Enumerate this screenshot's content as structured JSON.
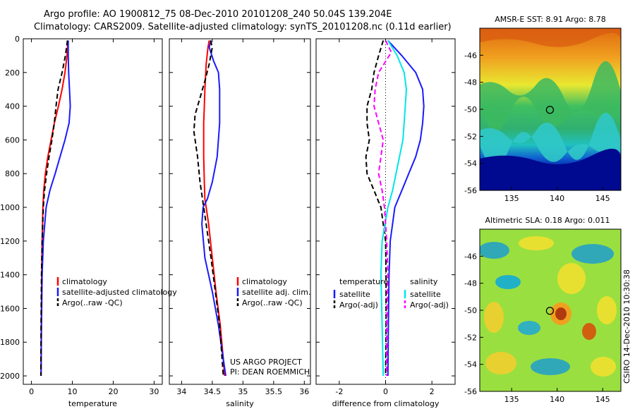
{
  "header": {
    "line1": "Argo profile: AO 1900812_75 08-Dec-2010 20101208_240 50.04S 139.204E",
    "line2": "Climatology: CARS2009. Satellite-adjusted climatology: synTS_20101208.nc (0.11d earlier)"
  },
  "footer": {
    "project": "US ARGO PROJECT",
    "pi": "PI: DEAN ROEMMICH",
    "stamp": "CSIRO 14-Dec-2010 10:30:38"
  },
  "colors": {
    "climatology": "#ff0000",
    "satellite": "#1a1aff",
    "argo": "#000000",
    "satellite_salinity": "#00e6e6",
    "argo_salinity_diff": "#ff00ff"
  },
  "chart_data": [
    {
      "type": "line",
      "xlabel": "temperature",
      "ylabel": "",
      "xlim": [
        -2,
        32
      ],
      "ylim": [
        2050,
        0
      ],
      "xticks": [
        0,
        10,
        20,
        30
      ],
      "yticks": [
        0,
        200,
        400,
        600,
        800,
        1000,
        1200,
        1400,
        1600,
        1800,
        2000
      ],
      "legend": [
        "climatology",
        "satellite-adjusted climatology",
        "Argo(..raw -QC)"
      ],
      "series": [
        {
          "name": "climatology",
          "style": "solid",
          "color": "#ff0000",
          "x": [
            8.9,
            8.7,
            8.2,
            7.5,
            6.6,
            5.6,
            4.8,
            4.0,
            3.4,
            3.0,
            2.8,
            2.6,
            2.5,
            2.4,
            2.35
          ],
          "y": [
            10,
            100,
            200,
            300,
            400,
            500,
            600,
            700,
            800,
            900,
            1000,
            1200,
            1400,
            1700,
            2000
          ]
        },
        {
          "name": "satellite-adjusted climatology",
          "style": "solid",
          "color": "#1a1aff",
          "x": [
            9.0,
            9.0,
            9.1,
            9.3,
            9.5,
            9.2,
            8.2,
            7.0,
            5.8,
            4.5,
            3.6,
            2.9,
            2.6,
            2.45,
            2.35
          ],
          "y": [
            10,
            100,
            200,
            300,
            400,
            500,
            600,
            700,
            800,
            900,
            1000,
            1200,
            1400,
            1700,
            2000
          ]
        },
        {
          "name": "Argo(..raw -QC)",
          "style": "dashed",
          "color": "#000000",
          "x": [
            8.8,
            8.3,
            7.5,
            6.5,
            6.0,
            5.6,
            5.0,
            4.3,
            3.7,
            3.2,
            2.9,
            2.6,
            2.45,
            2.35,
            2.3
          ],
          "y": [
            10,
            100,
            200,
            300,
            400,
            500,
            600,
            700,
            800,
            900,
            1000,
            1200,
            1400,
            1700,
            2000
          ]
        }
      ]
    },
    {
      "type": "line",
      "xlabel": "salinity",
      "xlim": [
        33.8,
        36.1
      ],
      "ylim": [
        2050,
        0
      ],
      "xticks": [
        34,
        34.5,
        35,
        35.5,
        36
      ],
      "xtick_labels": [
        "34",
        "34.5",
        "35",
        "35.5",
        "36"
      ],
      "legend": [
        "climatology",
        "satellite adj. clim.",
        "Argo(..raw -QC)"
      ],
      "series": [
        {
          "name": "climatology",
          "style": "solid",
          "color": "#ff0000",
          "x": [
            34.45,
            34.43,
            34.4,
            34.38,
            34.37,
            34.36,
            34.36,
            34.37,
            34.38,
            34.4,
            34.44,
            34.5,
            34.56,
            34.63,
            34.68,
            34.7
          ],
          "y": [
            10,
            50,
            150,
            300,
            400,
            500,
            700,
            850,
            950,
            1000,
            1100,
            1300,
            1500,
            1700,
            1900,
            2000
          ]
        },
        {
          "name": "satellite adj. clim.",
          "style": "solid",
          "color": "#1a1aff",
          "x": [
            34.48,
            34.45,
            34.52,
            34.6,
            34.62,
            34.62,
            34.58,
            34.5,
            34.42,
            34.35,
            34.33,
            34.38,
            34.5,
            34.6,
            34.68,
            34.72
          ],
          "y": [
            10,
            50,
            130,
            200,
            300,
            500,
            700,
            850,
            950,
            1000,
            1100,
            1300,
            1500,
            1700,
            1900,
            2000
          ]
        },
        {
          "name": "Argo(..raw -QC)",
          "style": "dashed",
          "color": "#000000",
          "x": [
            34.47,
            34.5,
            34.45,
            34.38,
            34.3,
            34.22,
            34.2,
            34.26,
            34.3,
            34.34,
            34.4,
            34.48,
            34.55,
            34.62,
            34.66,
            34.68
          ],
          "y": [
            10,
            50,
            150,
            250,
            350,
            450,
            550,
            700,
            850,
            950,
            1100,
            1300,
            1500,
            1700,
            1900,
            2000
          ]
        }
      ]
    },
    {
      "type": "line",
      "xlabel": "difference from climatology",
      "xlim": [
        -3,
        3
      ],
      "ylim": [
        2050,
        0
      ],
      "xticks": [
        -2,
        0,
        2
      ],
      "legend_left_title": "temperature",
      "legend_right_title": "salinity",
      "legend": [
        "satellite",
        "Argo(-adj)",
        "satellite",
        "Argo(-adj)"
      ],
      "series": [
        {
          "name": "satellite",
          "group": "temperature",
          "style": "solid",
          "color": "#1a1aff",
          "x": [
            0.1,
            0.7,
            1.3,
            1.6,
            1.65,
            1.6,
            1.5,
            1.3,
            1.0,
            0.7,
            0.4,
            0.2,
            0.15,
            0.12,
            0.1
          ],
          "y": [
            10,
            100,
            200,
            300,
            400,
            500,
            600,
            700,
            800,
            900,
            1000,
            1200,
            1400,
            1700,
            2000
          ]
        },
        {
          "name": "Argo(-adj)",
          "group": "temperature",
          "style": "dashed",
          "color": "#000000",
          "x": [
            -0.1,
            -0.3,
            -0.5,
            -0.6,
            -0.8,
            -0.8,
            -0.7,
            -0.85,
            -0.8,
            -0.5,
            -0.2,
            0.0,
            0.02,
            0.02,
            0.0
          ],
          "y": [
            10,
            100,
            200,
            300,
            400,
            500,
            600,
            700,
            800,
            900,
            1000,
            1200,
            1400,
            1700,
            2000
          ]
        },
        {
          "name": "satellite",
          "group": "salinity",
          "style": "solid",
          "color": "#00e6e6",
          "x": [
            0.1,
            0.5,
            0.8,
            0.9,
            0.85,
            0.8,
            0.75,
            0.6,
            0.45,
            0.3,
            0.1,
            -0.15,
            -0.2,
            -0.15,
            -0.1
          ],
          "y": [
            10,
            100,
            200,
            300,
            400,
            500,
            600,
            700,
            800,
            900,
            1000,
            1200,
            1400,
            1700,
            2000
          ]
        },
        {
          "name": "Argo(-adj)",
          "group": "salinity",
          "style": "dashed",
          "color": "#ff00ff",
          "x": [
            0.0,
            0.25,
            -0.3,
            -0.45,
            -0.5,
            -0.3,
            -0.1,
            -0.2,
            -0.3,
            -0.15,
            -0.05,
            0.05,
            0.1,
            0.05,
            0.05
          ],
          "y": [
            10,
            80,
            200,
            300,
            400,
            500,
            600,
            700,
            800,
            900,
            1000,
            1200,
            1400,
            1700,
            2000
          ]
        }
      ]
    },
    {
      "type": "heatmap",
      "title": "AMSR-E SST: 8.91 Argo: 8.78",
      "xlim": [
        131.5,
        147
      ],
      "ylim": [
        -56,
        -44
      ],
      "xticks": [
        135,
        140,
        145
      ],
      "yticks": [
        -46,
        -48,
        -50,
        -52,
        -54,
        -56
      ],
      "marker": {
        "x": 139.204,
        "y": -50.04
      }
    },
    {
      "type": "heatmap",
      "title": "Altimetric SLA: 0.18 Argo: 0.011",
      "xlim": [
        131.5,
        147
      ],
      "ylim": [
        -56,
        -44
      ],
      "xticks": [
        135,
        140,
        145
      ],
      "yticks": [
        -46,
        -48,
        -50,
        -52,
        -54,
        -56
      ],
      "marker": {
        "x": 139.204,
        "y": -50.04
      }
    }
  ]
}
